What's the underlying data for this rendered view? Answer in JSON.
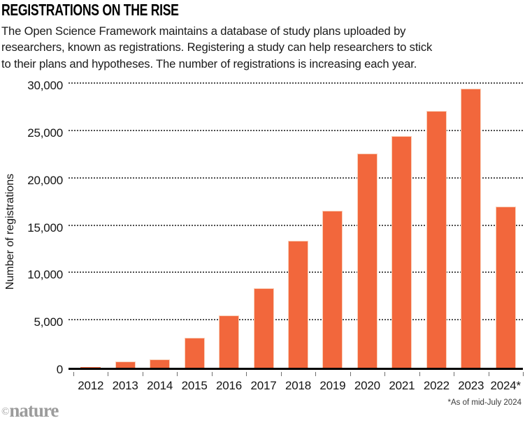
{
  "header": {
    "title": "REGISTRATIONS ON THE RISE",
    "subtitle_lines": [
      "The Open Science Framework maintains a database of study plans uploaded by",
      "researchers, known as registrations. Registering a study can help researchers to stick",
      "to their plans and hypotheses. The number of registrations is increasing each year."
    ]
  },
  "chart_data": {
    "type": "bar",
    "title": "REGISTRATIONS ON THE RISE",
    "categories": [
      "2012",
      "2013",
      "2014",
      "2015",
      "2016",
      "2017",
      "2018",
      "2019",
      "2020",
      "2021",
      "2022",
      "2023",
      "2024*"
    ],
    "values": [
      60,
      650,
      900,
      3200,
      5500,
      8400,
      13450,
      16600,
      22650,
      24450,
      27100,
      29500,
      17050
    ],
    "xlabel": "",
    "ylabel": "Number of registrations",
    "ylim": [
      0,
      30000
    ],
    "yticks": [
      0,
      5000,
      10000,
      15000,
      20000,
      25000,
      30000
    ],
    "ytick_labels": [
      "0",
      "5,000",
      "10,000",
      "15,000",
      "20,000",
      "25,000",
      "30,000"
    ],
    "grid": "horizontal-dotted",
    "legend": "none",
    "bar_color": "#F2673C",
    "bar_edge_color": "#F9CFB8"
  },
  "footnote": "*As of mid-July 2024",
  "branding": {
    "copyright_symbol": "©",
    "logo_text": "nature"
  }
}
